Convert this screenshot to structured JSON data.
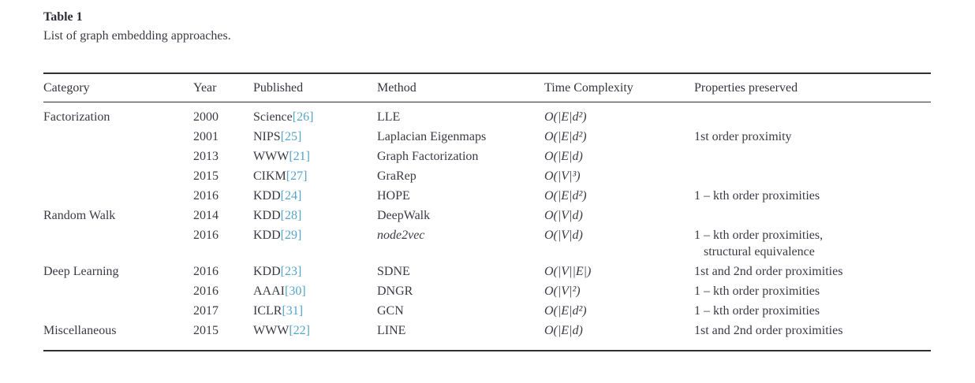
{
  "colors": {
    "text": "#3a3a44",
    "citation_link": "#54a4c8",
    "rule": "#2f2f38",
    "background": "#ffffff"
  },
  "table": {
    "title": "Table 1",
    "caption": "List of graph embedding approaches.",
    "columns": [
      "Category",
      "Year",
      "Published",
      "Method",
      "Time Complexity",
      "Properties preserved"
    ],
    "rows": [
      {
        "category": "Factorization",
        "year": "2000",
        "venue": "Science",
        "ref": "[26]",
        "method": "LLE",
        "method_italic": false,
        "complexity": "O(|E|d²)",
        "properties": []
      },
      {
        "category": "",
        "year": "2001",
        "venue": "NIPS",
        "ref": "[25]",
        "method": "Laplacian Eigenmaps",
        "method_italic": false,
        "complexity": "O(|E|d²)",
        "properties": [
          "1st order proximity"
        ]
      },
      {
        "category": "",
        "year": "2013",
        "venue": "WWW",
        "ref": "[21]",
        "method": "Graph Factorization",
        "method_italic": false,
        "complexity": "O(|E|d)",
        "properties": []
      },
      {
        "category": "",
        "year": "2015",
        "venue": "CIKM",
        "ref": "[27]",
        "method": "GraRep",
        "method_italic": false,
        "complexity": "O(|V|³)",
        "properties": []
      },
      {
        "category": "",
        "year": "2016",
        "venue": "KDD",
        "ref": "[24]",
        "method": "HOPE",
        "method_italic": false,
        "complexity": "O(|E|d²)",
        "properties": [
          "1 – kth order proximities"
        ]
      },
      {
        "category": "Random Walk",
        "year": "2014",
        "venue": "KDD",
        "ref": "[28]",
        "method": "DeepWalk",
        "method_italic": false,
        "complexity": "O(|V|d)",
        "properties": []
      },
      {
        "category": "",
        "year": "2016",
        "venue": "KDD",
        "ref": "[29]",
        "method": "node2vec",
        "method_italic": true,
        "complexity": "O(|V|d)",
        "properties": [
          "1 – kth order proximities,",
          "structural equivalence"
        ]
      },
      {
        "category": "Deep Learning",
        "year": "2016",
        "venue": "KDD",
        "ref": "[23]",
        "method": "SDNE",
        "method_italic": false,
        "complexity": "O(|V||E|)",
        "properties": [
          "1st and 2nd order proximities"
        ]
      },
      {
        "category": "",
        "year": "2016",
        "venue": "AAAI",
        "ref": "[30]",
        "method": "DNGR",
        "method_italic": false,
        "complexity": "O(|V|²)",
        "properties": [
          "1 – kth order proximities"
        ]
      },
      {
        "category": "",
        "year": "2017",
        "venue": "ICLR",
        "ref": "[31]",
        "method": "GCN",
        "method_italic": false,
        "complexity": "O(|E|d²)",
        "properties": [
          "1 – kth order proximities"
        ]
      },
      {
        "category": "Miscellaneous",
        "year": "2015",
        "venue": "WWW",
        "ref": "[22]",
        "method": "LINE",
        "method_italic": false,
        "complexity": "O(|E|d)",
        "properties": [
          "1st and 2nd order proximities"
        ]
      }
    ]
  }
}
